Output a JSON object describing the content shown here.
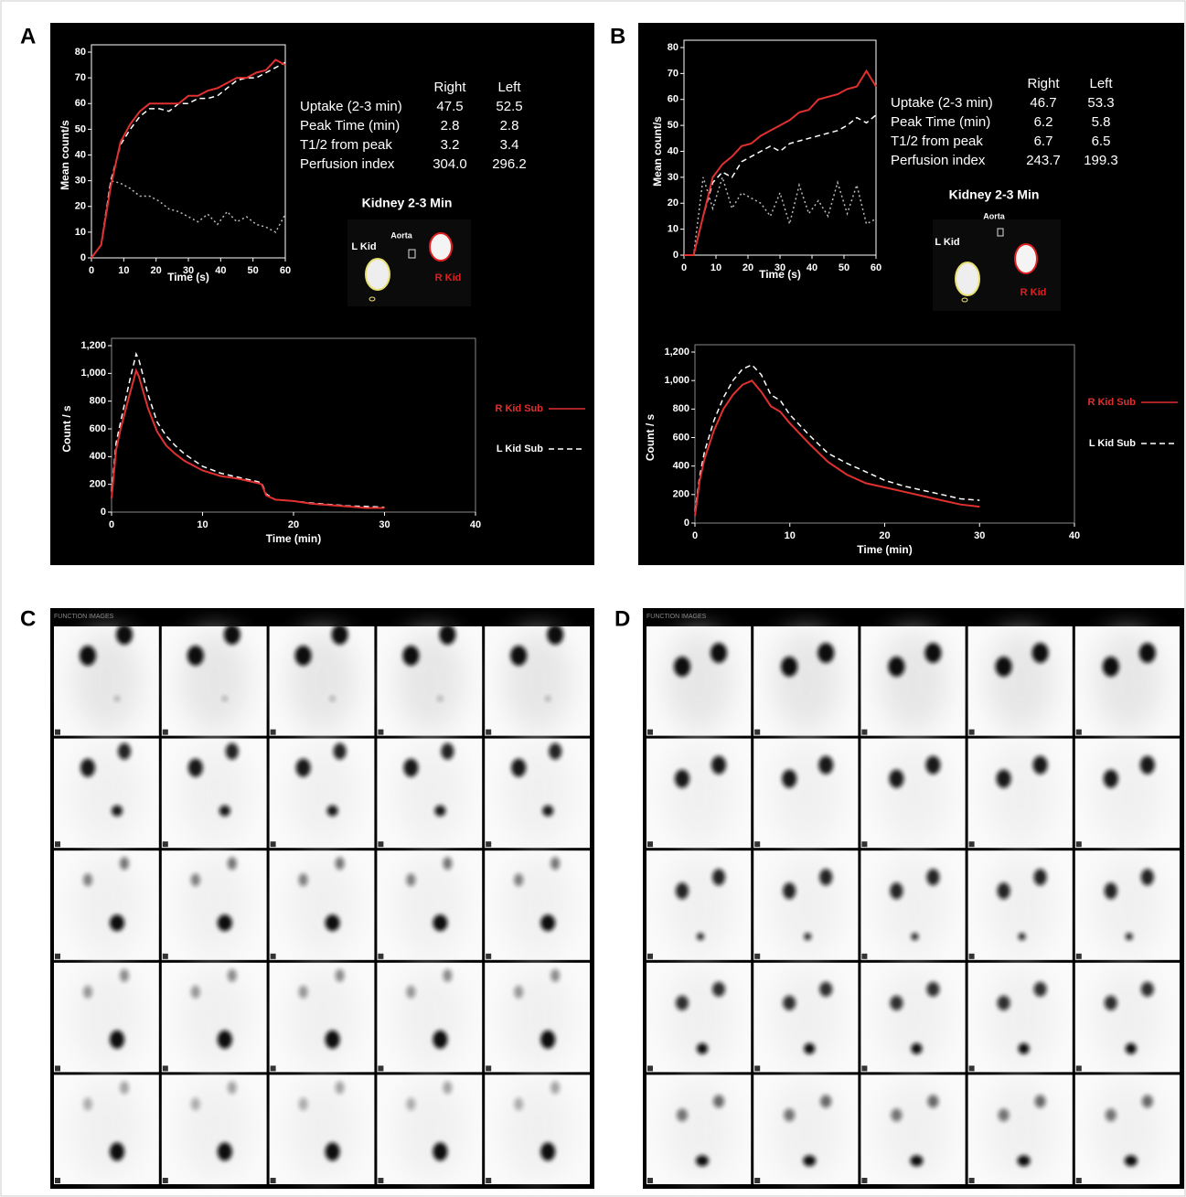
{
  "panel_labels": [
    "A",
    "B",
    "C",
    "D"
  ],
  "chart_data": [
    {
      "type": "line",
      "ylabel": "Mean count/s",
      "xlabel": "Time (s)",
      "x": [
        0,
        3,
        6,
        9,
        12,
        15,
        18,
        21,
        24,
        27,
        30,
        33,
        36,
        39,
        42,
        45,
        48,
        51,
        54,
        57,
        60
      ],
      "series": [
        {
          "color": "#e03030",
          "style": "solid",
          "values": [
            0,
            5,
            28,
            45,
            52,
            57,
            60,
            60,
            60,
            60,
            63,
            63,
            65,
            66,
            68,
            70,
            70,
            72,
            73,
            77,
            75
          ]
        },
        {
          "color": "#ffffff",
          "style": "dashed",
          "values": [
            0,
            5,
            30,
            44,
            50,
            55,
            58,
            58,
            57,
            60,
            60,
            62,
            62,
            63,
            66,
            69,
            70,
            70,
            72,
            74,
            76
          ]
        },
        {
          "color": "#bbbbbb",
          "style": "dotted",
          "values": [
            0,
            5,
            30,
            29,
            27,
            24,
            24,
            22,
            19,
            18,
            16,
            14,
            17,
            13,
            18,
            14,
            16,
            13,
            12,
            10,
            17
          ]
        }
      ],
      "xlim": [
        0,
        60
      ],
      "ylim": [
        0,
        80
      ],
      "xticks": [
        0,
        10,
        20,
        30,
        40,
        50,
        60
      ],
      "yticks": [
        0,
        10,
        20,
        30,
        40,
        50,
        60,
        70,
        80
      ]
    },
    {
      "type": "line",
      "ylabel": "Count / s",
      "xlabel": "Time (min)",
      "legend": "right",
      "x": [
        0,
        0.5,
        1,
        2,
        2.7,
        3,
        4,
        5,
        6,
        7,
        8,
        10,
        12,
        14,
        16,
        16.5,
        17,
        18,
        20,
        22,
        24,
        26,
        28,
        30
      ],
      "series": [
        {
          "name": "R Kid Sub",
          "color": "#e03030",
          "style": "solid",
          "values": [
            100,
            450,
            600,
            850,
            1020,
            980,
            750,
            580,
            480,
            420,
            370,
            300,
            260,
            240,
            210,
            200,
            120,
            90,
            80,
            60,
            50,
            40,
            30,
            30
          ]
        },
        {
          "name": "L Kid Sub",
          "color": "#ffffff",
          "style": "dashed",
          "values": [
            150,
            500,
            650,
            950,
            1140,
            1100,
            850,
            650,
            550,
            480,
            420,
            330,
            280,
            250,
            220,
            210,
            130,
            90,
            80,
            65,
            55,
            45,
            40,
            35
          ]
        }
      ],
      "xlim": [
        0,
        40
      ],
      "ylim": [
        0,
        1200
      ],
      "xticks": [
        0,
        10,
        20,
        30,
        40
      ],
      "yticks": [
        0,
        200,
        400,
        600,
        800,
        {
          "value": 1000,
          "label": "1,000"
        },
        {
          "value": 1200,
          "label": "1,200"
        }
      ]
    },
    {
      "type": "line",
      "ylabel": "Mean count/s",
      "xlabel": "Time (s)",
      "x": [
        0,
        3,
        6,
        9,
        12,
        15,
        18,
        21,
        24,
        27,
        30,
        33,
        36,
        39,
        42,
        45,
        48,
        51,
        54,
        57,
        60
      ],
      "series": [
        {
          "color": "#e03030",
          "style": "solid",
          "values": [
            0,
            0,
            15,
            30,
            35,
            38,
            42,
            43,
            46,
            48,
            50,
            52,
            55,
            56,
            60,
            61,
            62,
            64,
            65,
            71,
            65
          ]
        },
        {
          "color": "#ffffff",
          "style": "dashed",
          "values": [
            0,
            0,
            15,
            28,
            32,
            30,
            36,
            38,
            40,
            42,
            40,
            43,
            44,
            45,
            46,
            47,
            48,
            50,
            53,
            51,
            54
          ]
        },
        {
          "color": "#bbbbbb",
          "style": "dotted",
          "values": [
            0,
            0,
            30,
            18,
            30,
            18,
            24,
            22,
            20,
            15,
            24,
            12,
            27,
            16,
            21,
            15,
            28,
            16,
            27,
            12,
            14
          ]
        }
      ],
      "xlim": [
        0,
        60
      ],
      "ylim": [
        0,
        80
      ],
      "xticks": [
        0,
        10,
        20,
        30,
        40,
        50,
        60
      ],
      "yticks": [
        0,
        10,
        20,
        30,
        40,
        50,
        60,
        70,
        80
      ]
    },
    {
      "type": "line",
      "ylabel": "Count / s",
      "xlabel": "Time (min)",
      "legend": "right",
      "x": [
        0,
        0.5,
        1,
        2,
        3,
        4,
        5,
        6,
        7,
        8,
        9,
        10,
        12,
        14,
        16,
        18,
        20,
        22,
        24,
        26,
        28,
        30
      ],
      "series": [
        {
          "name": "R Kid Sub",
          "color": "#e03030",
          "style": "solid",
          "values": [
            50,
            300,
            450,
            650,
            800,
            900,
            970,
            1000,
            920,
            820,
            780,
            700,
            560,
            430,
            340,
            280,
            250,
            220,
            190,
            160,
            130,
            115
          ]
        },
        {
          "name": "L Kid Sub",
          "color": "#ffffff",
          "style": "dashed",
          "values": [
            80,
            330,
            500,
            720,
            880,
            1000,
            1080,
            1110,
            1040,
            900,
            860,
            760,
            620,
            490,
            420,
            360,
            300,
            260,
            230,
            200,
            170,
            160
          ]
        }
      ],
      "xlim": [
        0,
        40
      ],
      "ylim": [
        0,
        1200
      ],
      "xticks": [
        0,
        10,
        20,
        30,
        40
      ],
      "yticks": [
        0,
        200,
        400,
        600,
        800,
        {
          "value": 1000,
          "label": "1,000"
        },
        {
          "value": 1200,
          "label": "1,200"
        }
      ]
    }
  ],
  "tables": [
    {
      "columns": [
        "Right",
        "Left"
      ],
      "rows": [
        [
          "Uptake (2-3 min)",
          "47.5",
          "52.5"
        ],
        [
          "Peak Time (min)",
          "2.8",
          "2.8"
        ],
        [
          "T1/2 from peak",
          "3.2",
          "3.4"
        ],
        [
          "Perfusion index",
          "304.0",
          "296.2"
        ]
      ]
    },
    {
      "columns": [
        "Right",
        "Left"
      ],
      "rows": [
        [
          "Uptake (2-3 min)",
          "46.7",
          "53.3"
        ],
        [
          "Peak Time (min)",
          "6.2",
          "5.8"
        ],
        [
          "T1/2 from peak",
          "6.7",
          "6.5"
        ],
        [
          "Perfusion index",
          "243.7",
          "199.3"
        ]
      ]
    }
  ],
  "roi_images": [
    {
      "title": "Kidney 2-3 Min",
      "left": "L Kid",
      "aorta": "Aorta",
      "right": "R Kid"
    },
    {
      "title": "Kidney 2-3 Min",
      "left": "L Kid",
      "aorta": "Aorta",
      "right": "R Kid"
    }
  ],
  "function_images": [
    "FUNCTION IMAGES",
    "FUNCTION IMAGES"
  ]
}
